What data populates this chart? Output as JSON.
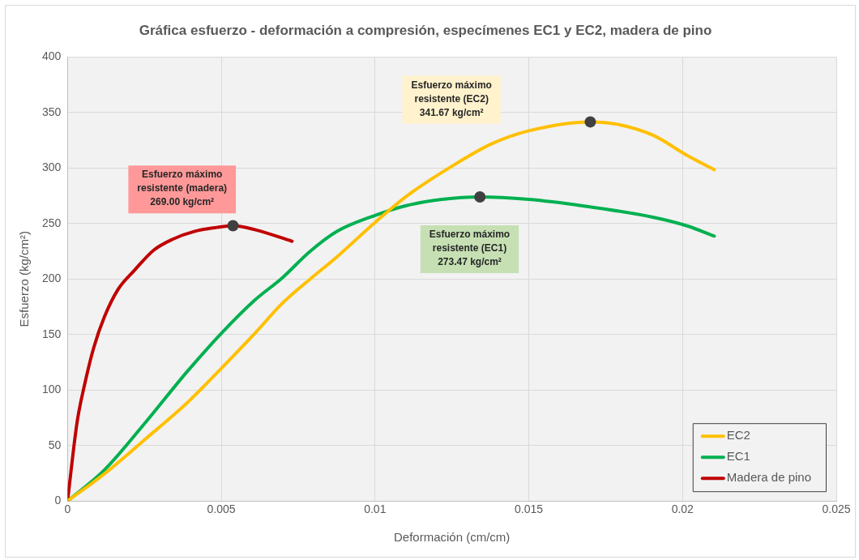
{
  "chart_data": {
    "type": "line",
    "title": "Gráfica esfuerzo - deformación a compresión, especímenes EC1 y EC2, madera de pino",
    "xlabel": "Deformación (cm/cm)",
    "ylabel": "Esfuerzo (kg/cm²)",
    "xlim": [
      0,
      0.025
    ],
    "xticks": [
      0,
      0.005,
      0.01,
      0.015,
      0.02,
      0.025
    ],
    "ylim": [
      0,
      400
    ],
    "yticks": [
      0,
      50,
      100,
      150,
      200,
      250,
      300,
      350,
      400
    ],
    "grid": true,
    "legend": "bottom right",
    "marker": "none",
    "line_style": "solid",
    "series": [
      {
        "name": "EC2",
        "color": "#ffc000",
        "x": [
          0,
          0.0012,
          0.00254,
          0.00387,
          0.005,
          0.00609,
          0.00698,
          0.00787,
          0.00876,
          0.01,
          0.01104,
          0.01252,
          0.01378,
          0.015,
          0.017,
          0.01789,
          0.01903,
          0.02017,
          0.02103
        ],
        "values": [
          0,
          24.5,
          56,
          88,
          119.5,
          151,
          178,
          199.5,
          220,
          251,
          275,
          302,
          321.7,
          333.6,
          341.6,
          339.4,
          329.7,
          311,
          298.5
        ]
      },
      {
        "name": "EC1",
        "color": "#00b050",
        "x": [
          0,
          0.0012,
          0.00254,
          0.00387,
          0.005,
          0.00609,
          0.00698,
          0.00787,
          0.00876,
          0.01,
          0.01104,
          0.01218,
          0.01341,
          0.015,
          0.01675,
          0.01903,
          0.02017,
          0.02103
        ],
        "values": [
          0,
          28,
          71,
          116,
          151,
          181,
          201,
          224.5,
          242.9,
          257.3,
          266.3,
          271.8,
          274,
          271.8,
          266,
          255.7,
          247.7,
          238.7
        ]
      },
      {
        "name": "Madera de pino",
        "color": "#c00000",
        "x": [
          0,
          0.00031,
          0.00058,
          0.00085,
          0.0012,
          0.00165,
          0.00218,
          0.0028,
          0.00343,
          0.00414,
          0.00485,
          0.00538,
          0.00609,
          0.0073
        ],
        "values": [
          0,
          71,
          108,
          138,
          166,
          191,
          208,
          226,
          236,
          243,
          246.5,
          248,
          244.5,
          234
        ]
      },
      {
        "type": "scatter",
        "marker": "circle",
        "color": "#404040",
        "x": [
          0.00538,
          0.01341,
          0.017
        ],
        "values": [
          248,
          274,
          341.6
        ]
      }
    ],
    "annotations": [
      "Esfuerzo máximo\nresistente (madera)\n269.00 kg/cm²",
      "Esfuerzo máximo\nresistente (EC2)\n341.67 kg/cm²",
      "Esfuerzo máximo\nresistente (EC1)\n273.47 kg/cm²"
    ]
  }
}
